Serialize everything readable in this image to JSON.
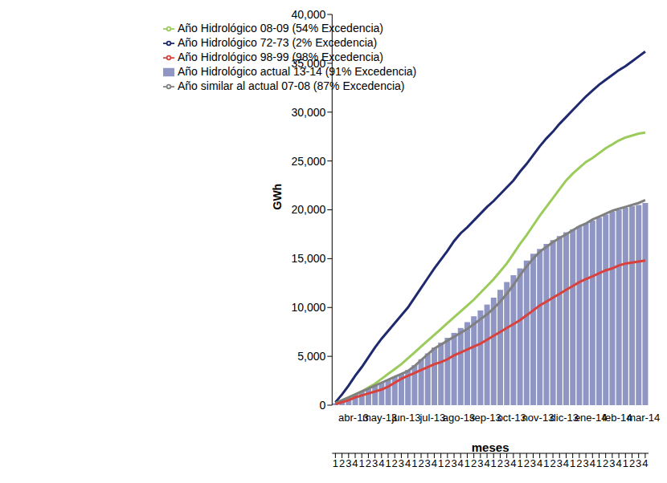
{
  "chart_data": {
    "type": "bar",
    "x_label": "meses",
    "y_label": "GWh",
    "categories": [
      "1",
      "2",
      "3",
      "4",
      "1",
      "2",
      "3",
      "4",
      "1",
      "2",
      "3",
      "4",
      "1",
      "2",
      "3",
      "4",
      "1",
      "2",
      "3",
      "4",
      "1",
      "2",
      "3",
      "4",
      "1",
      "2",
      "3",
      "4",
      "1",
      "2",
      "3",
      "4",
      "1",
      "2",
      "3",
      "4",
      "1",
      "2",
      "3",
      "4",
      "1",
      "2",
      "3",
      "4",
      "1",
      "2",
      "3",
      "4"
    ],
    "months": [
      "abr-13",
      "may-13",
      "jun-13",
      "jul-13",
      "ago-13",
      "sep-13",
      "oct-13",
      "nov-13",
      "dic-13",
      "ene-14",
      "feb-14",
      "mar-14"
    ],
    "ylim": [
      0,
      40000
    ],
    "yticks": [
      0,
      {
        "value": 5000,
        "label": "5,000"
      },
      {
        "value": 10000,
        "label": "10,000"
      },
      {
        "value": 15000,
        "label": "15,000"
      },
      {
        "value": 20000,
        "label": "20,000"
      },
      {
        "value": 25000,
        "label": "25,000"
      },
      {
        "value": 30000,
        "label": "30,000"
      },
      {
        "value": 35000,
        "label": "35,000"
      },
      {
        "value": 40000,
        "label": "40,000"
      }
    ],
    "grid": false,
    "legend": "top left",
    "series": [
      {
        "name": "Año Hidrológico actual 13-14 (91% Excedencia)",
        "type": "bar",
        "color": "#8f96c3",
        "values": [
          200,
          500,
          800,
          1100,
          1400,
          1700,
          2000,
          2300,
          2600,
          2900,
          3200,
          3600,
          4100,
          4700,
          5300,
          5900,
          6400,
          6900,
          7400,
          7900,
          8500,
          9100,
          9700,
          10300,
          11000,
          11800,
          12600,
          13300,
          14000,
          14800,
          15500,
          16000,
          16500,
          16900,
          17300,
          17700,
          18000,
          18300,
          18600,
          18900,
          19200,
          19500,
          19800,
          20000,
          20200,
          20400,
          20500,
          20700
        ]
      },
      {
        "name": "Año Hidrológico 72-73 (2% Excedencia)",
        "type": "line",
        "color": "#1f2a6e",
        "values": [
          300,
          1100,
          2000,
          3000,
          3900,
          4900,
          5900,
          6800,
          7600,
          8400,
          9200,
          10000,
          11000,
          12000,
          13000,
          14000,
          14900,
          15800,
          16800,
          17600,
          18200,
          18900,
          19600,
          20300,
          20900,
          21600,
          22300,
          23000,
          23900,
          24700,
          25600,
          26500,
          27300,
          28000,
          28800,
          29500,
          30200,
          30900,
          31600,
          32200,
          32800,
          33300,
          33800,
          34300,
          34700,
          35200,
          35700,
          36200
        ]
      },
      {
        "name": "Año Hidrológico 08-09 (54% Excedencia)",
        "type": "line",
        "color": "#9bcb5a",
        "values": [
          200,
          500,
          800,
          1100,
          1400,
          1800,
          2200,
          2700,
          3200,
          3700,
          4200,
          4800,
          5400,
          6000,
          6600,
          7200,
          7800,
          8400,
          9000,
          9600,
          10200,
          10800,
          11500,
          12200,
          12900,
          13700,
          14500,
          15500,
          16500,
          17400,
          18400,
          19400,
          20300,
          21200,
          22100,
          23000,
          23700,
          24300,
          24900,
          25300,
          25800,
          26300,
          26700,
          27100,
          27400,
          27600,
          27800,
          27900
        ]
      },
      {
        "name": "Año similar al actual 07-08 (87% Excedencia)",
        "type": "line",
        "color": "#808080",
        "values": [
          200,
          500,
          800,
          1100,
          1400,
          1700,
          2000,
          2300,
          2600,
          2900,
          3200,
          3500,
          4000,
          4600,
          5200,
          5800,
          6200,
          6600,
          7000,
          7400,
          7800,
          8300,
          8800,
          9300,
          9900,
          10600,
          11400,
          12300,
          13300,
          14200,
          15000,
          15700,
          16200,
          16700,
          17100,
          17500,
          17900,
          18300,
          18600,
          19000,
          19300,
          19600,
          19900,
          20100,
          20300,
          20500,
          20700,
          21000
        ]
      },
      {
        "name": "Año Hidrológico 98-99 (98% Excedencia)",
        "type": "line",
        "color": "#d9413d",
        "values": [
          100,
          300,
          500,
          800,
          1000,
          1200,
          1400,
          1600,
          1900,
          2300,
          2700,
          3000,
          3300,
          3600,
          3900,
          4200,
          4400,
          4700,
          5100,
          5400,
          5700,
          6000,
          6300,
          6700,
          7100,
          7500,
          7900,
          8300,
          8700,
          9200,
          9700,
          10200,
          10600,
          11000,
          11400,
          11800,
          12200,
          12600,
          12900,
          13200,
          13500,
          13800,
          14000,
          14300,
          14500,
          14600,
          14700,
          14800
        ]
      }
    ]
  }
}
